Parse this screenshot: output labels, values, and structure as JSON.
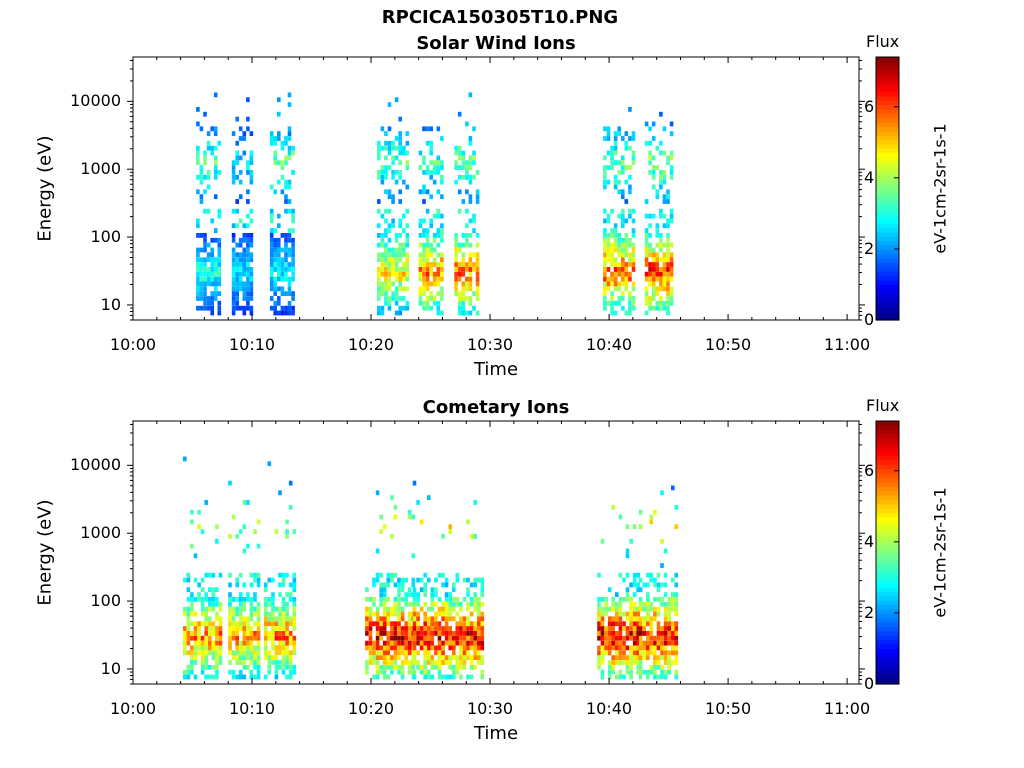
{
  "figure": {
    "title": "RPCICA150305T10.PNG"
  },
  "chart_data": [
    {
      "type": "heatmap",
      "title": "Solar Wind Ions",
      "xlabel": "Time",
      "ylabel": "Energy (eV)",
      "x_ticks": [
        "10:00",
        "10:10",
        "10:20",
        "10:30",
        "10:40",
        "10:50",
        "11:00"
      ],
      "xlim_minutes": [
        0,
        61
      ],
      "y_ticks": [
        "10",
        "100",
        "1000",
        "10000"
      ],
      "ylim": [
        6,
        45000
      ],
      "y_scale": "log",
      "colorbar": {
        "label": "Flux",
        "unit": "eV-1cm-2sr-1s-1",
        "ticks": [
          "0",
          "2",
          "4",
          "6"
        ],
        "range": [
          0,
          7.4
        ]
      },
      "bursts": [
        {
          "start_min": 5.3,
          "end_min": 7.2,
          "low_energy_peak_flux": 3.2,
          "high_energy_peak_flux": 3.8
        },
        {
          "start_min": 8.3,
          "end_min": 10.0,
          "low_energy_peak_flux": 2.8,
          "high_energy_peak_flux": 3.0
        },
        {
          "start_min": 11.5,
          "end_min": 13.5,
          "low_energy_peak_flux": 3.0,
          "high_energy_peak_flux": 4.0
        },
        {
          "start_min": 20.5,
          "end_min": 23.0,
          "low_energy_peak_flux": 5.2,
          "high_energy_peak_flux": 3.8
        },
        {
          "start_min": 24.0,
          "end_min": 26.0,
          "low_energy_peak_flux": 6.0,
          "high_energy_peak_flux": 3.6
        },
        {
          "start_min": 27.0,
          "end_min": 29.0,
          "low_energy_peak_flux": 6.0,
          "high_energy_peak_flux": 4.0
        },
        {
          "start_min": 39.5,
          "end_min": 42.0,
          "low_energy_peak_flux": 6.2,
          "high_energy_peak_flux": 4.0
        },
        {
          "start_min": 43.0,
          "end_min": 45.3,
          "low_energy_peak_flux": 6.6,
          "high_energy_peak_flux": 4.2
        }
      ]
    },
    {
      "type": "heatmap",
      "title": "Cometary Ions",
      "xlabel": "Time",
      "ylabel": "Energy (eV)",
      "x_ticks": [
        "10:00",
        "10:10",
        "10:20",
        "10:30",
        "10:40",
        "10:50",
        "11:00"
      ],
      "xlim_minutes": [
        0,
        61
      ],
      "y_ticks": [
        "10",
        "100",
        "1000",
        "10000"
      ],
      "ylim": [
        6,
        45000
      ],
      "y_scale": "log",
      "colorbar": {
        "label": "Flux",
        "unit": "eV-1cm-2sr-1s-1",
        "ticks": [
          "0",
          "2",
          "4",
          "6"
        ],
        "range": [
          0,
          7.4
        ]
      },
      "bursts": [
        {
          "start_min": 4.2,
          "end_min": 7.2,
          "low_energy_peak_flux": 6.0,
          "high_energy_peak_flux": 4.5
        },
        {
          "start_min": 8.0,
          "end_min": 10.5,
          "low_energy_peak_flux": 5.8,
          "high_energy_peak_flux": 4.5
        },
        {
          "start_min": 11.0,
          "end_min": 13.5,
          "low_energy_peak_flux": 6.0,
          "high_energy_peak_flux": 4.5
        },
        {
          "start_min": 19.5,
          "end_min": 23.5,
          "low_energy_peak_flux": 7.0,
          "high_energy_peak_flux": 5.0
        },
        {
          "start_min": 23.5,
          "end_min": 26.5,
          "low_energy_peak_flux": 7.2,
          "high_energy_peak_flux": 5.0
        },
        {
          "start_min": 26.5,
          "end_min": 29.5,
          "low_energy_peak_flux": 7.0,
          "high_energy_peak_flux": 5.0
        },
        {
          "start_min": 39.0,
          "end_min": 42.5,
          "low_energy_peak_flux": 7.2,
          "high_energy_peak_flux": 5.0
        },
        {
          "start_min": 42.5,
          "end_min": 45.5,
          "low_energy_peak_flux": 7.0,
          "high_energy_peak_flux": 5.0
        }
      ]
    }
  ]
}
